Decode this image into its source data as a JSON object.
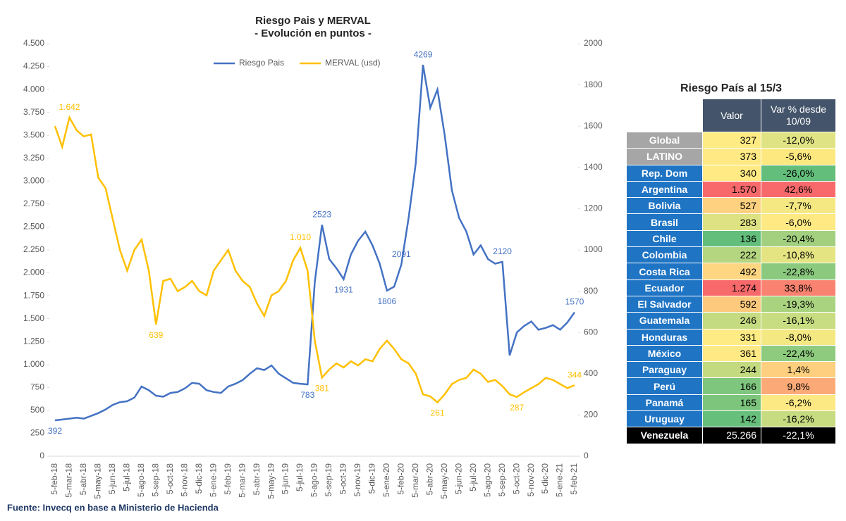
{
  "chart_data": {
    "type": "line",
    "title": "Riesgo Pais y MERVAL",
    "subtitle": "- Evolución en puntos -",
    "source": "Fuente: Invecq en base a Ministerio de Hacienda",
    "categories": [
      "5-feb-18",
      null,
      "5-mar-18",
      null,
      "5-abr-18",
      null,
      "5-may-18",
      null,
      "5-jun-18",
      null,
      "5-jul-18",
      null,
      "5-ago-18",
      null,
      "5-sep-18",
      null,
      "5-oct-18",
      null,
      "5-nov-18",
      null,
      "5-dic-18",
      null,
      "5-ene-19",
      null,
      "5-feb-19",
      null,
      "5-mar-19",
      null,
      "5-abr-19",
      null,
      "5-may-19",
      null,
      "5-jun-19",
      null,
      "5-jul-19",
      null,
      "5-ago-19",
      null,
      "5-sep-19",
      null,
      "5-oct-19",
      null,
      "5-nov-19",
      null,
      "5-dic-19",
      null,
      "5-ene-20",
      null,
      "5-feb-20",
      null,
      "5-mar-20",
      null,
      "5-abr-20",
      null,
      "5-may-20",
      null,
      "5-jun-20",
      null,
      "5-jul-20",
      null,
      "5-ago-20",
      null,
      "5-sep-20",
      null,
      "5-oct-20",
      null,
      "5-nov-20",
      null,
      "5-dic-20",
      null,
      "5-ene-21",
      null,
      "5-feb-21"
    ],
    "series": [
      {
        "name": "Riesgo Pais",
        "color": "#4472c4",
        "axis": "y",
        "values": [
          392,
          400,
          410,
          420,
          410,
          440,
          470,
          510,
          560,
          590,
          600,
          640,
          760,
          720,
          660,
          650,
          690,
          700,
          740,
          800,
          790,
          720,
          700,
          690,
          760,
          790,
          830,
          900,
          960,
          940,
          990,
          900,
          850,
          800,
          790,
          783,
          1900,
          2523,
          2150,
          2050,
          1931,
          2200,
          2350,
          2450,
          2300,
          2100,
          1806,
          1850,
          2091,
          2600,
          3200,
          4269,
          3800,
          4000,
          3500,
          2900,
          2600,
          2450,
          2200,
          2300,
          2150,
          2100,
          2120,
          1100,
          1350,
          1420,
          1470,
          1380,
          1400,
          1430,
          1380,
          1460,
          1570
        ],
        "value_labels": [
          "392",
          null,
          null,
          null,
          null,
          null,
          null,
          null,
          null,
          null,
          null,
          null,
          null,
          null,
          null,
          null,
          null,
          null,
          null,
          null,
          null,
          null,
          null,
          null,
          null,
          null,
          null,
          null,
          null,
          null,
          null,
          null,
          null,
          null,
          null,
          "783",
          null,
          "2523",
          null,
          null,
          "1931",
          null,
          null,
          null,
          null,
          null,
          "1806",
          null,
          "2091",
          null,
          null,
          "4269",
          null,
          null,
          null,
          null,
          null,
          null,
          null,
          null,
          null,
          null,
          "2120",
          null,
          null,
          null,
          null,
          null,
          null,
          null,
          null,
          null,
          "1570"
        ]
      },
      {
        "name": "MERVAL (usd)",
        "color": "#ffc000",
        "axis": "y2",
        "values": [
          1600,
          1500,
          1642,
          1580,
          1550,
          1560,
          1350,
          1300,
          1150,
          1000,
          900,
          1000,
          1050,
          900,
          639,
          850,
          860,
          800,
          820,
          850,
          800,
          780,
          900,
          950,
          1000,
          900,
          850,
          820,
          740,
          680,
          780,
          800,
          850,
          950,
          1010,
          900,
          560,
          381,
          420,
          450,
          430,
          460,
          440,
          470,
          460,
          520,
          560,
          520,
          470,
          450,
          400,
          300,
          290,
          261,
          300,
          350,
          370,
          380,
          420,
          400,
          360,
          370,
          340,
          300,
          287,
          310,
          330,
          350,
          380,
          370,
          350,
          330,
          344
        ],
        "value_labels": [
          null,
          null,
          "1.642",
          null,
          null,
          null,
          null,
          null,
          null,
          null,
          null,
          null,
          null,
          null,
          "639",
          null,
          null,
          null,
          null,
          null,
          null,
          null,
          null,
          null,
          null,
          null,
          null,
          null,
          null,
          null,
          null,
          null,
          null,
          null,
          "1.010",
          null,
          null,
          "381",
          null,
          null,
          null,
          null,
          null,
          null,
          null,
          null,
          null,
          null,
          null,
          null,
          null,
          null,
          null,
          "261",
          null,
          null,
          null,
          null,
          null,
          null,
          null,
          null,
          null,
          null,
          "287",
          null,
          null,
          null,
          null,
          null,
          null,
          null,
          "344"
        ]
      }
    ],
    "ylim": [
      0,
      4500
    ],
    "yticks": [
      0,
      250,
      500,
      750,
      {
        "value": 1000,
        "label": "1.000"
      },
      {
        "value": 1250,
        "label": "1.250"
      },
      {
        "value": 1500,
        "label": "1.500"
      },
      {
        "value": 1750,
        "label": "1.750"
      },
      {
        "value": 2000,
        "label": "2.000"
      },
      {
        "value": 2250,
        "label": "2.250"
      },
      {
        "value": 2500,
        "label": "2.500"
      },
      {
        "value": 2750,
        "label": "2.750"
      },
      {
        "value": 3000,
        "label": "3.000"
      },
      {
        "value": 3250,
        "label": "3.250"
      },
      {
        "value": 3500,
        "label": "3.500"
      },
      {
        "value": 3750,
        "label": "3.750"
      },
      {
        "value": 4000,
        "label": "4.000"
      },
      {
        "value": 4250,
        "label": "4.250"
      },
      {
        "value": 4500,
        "label": "4.500"
      }
    ],
    "y2lim": [
      0,
      2000
    ],
    "y2ticks": [
      0,
      200,
      400,
      600,
      800,
      1000,
      1200,
      1400,
      1600,
      1800,
      2000
    ],
    "legend": "top"
  },
  "table": {
    "title": "Riesgo País al 15/3",
    "header": [
      "Valor",
      "Var % desde 10/09"
    ],
    "header_color": "#44546a",
    "rows": [
      {
        "name": "Global",
        "value": "327",
        "var": "-12,0%",
        "name_color": "#a6a6a6",
        "value_color": "#ffeb84",
        "var_color": "#e0e383"
      },
      {
        "name": "LATINO",
        "value": "373",
        "var": "-5,6%",
        "name_color": "#a6a6a6",
        "value_color": "#ffe984",
        "var_color": "#fde880"
      },
      {
        "name": "Rep. Dom",
        "value": "340",
        "var": "-26,0%",
        "name_color": "#1f74c4",
        "value_color": "#ffea84",
        "var_color": "#63be7b"
      },
      {
        "name": "Argentina",
        "value": "1.570",
        "var": "42,6%",
        "name_color": "#1f74c4",
        "value_color": "#f8696b",
        "var_color": "#f8696b"
      },
      {
        "name": "Bolivia",
        "value": "527",
        "var": "-7,7%",
        "name_color": "#1f74c4",
        "value_color": "#fdd17f",
        "var_color": "#f5e883"
      },
      {
        "name": "Brasil",
        "value": "283",
        "var": "-6,0%",
        "name_color": "#1f74c4",
        "value_color": "#dfe282",
        "var_color": "#fee983"
      },
      {
        "name": "Chile",
        "value": "136",
        "var": "-20,4%",
        "name_color": "#1f74c4",
        "value_color": "#63be7b",
        "var_color": "#a2d07f"
      },
      {
        "name": "Colombia",
        "value": "222",
        "var": "-10,8%",
        "name_color": "#1f74c4",
        "value_color": "#b5d680",
        "var_color": "#e5e482"
      },
      {
        "name": "Costa Rica",
        "value": "492",
        "var": "-22,8%",
        "name_color": "#1f74c4",
        "value_color": "#fed580",
        "var_color": "#8ac97e"
      },
      {
        "name": "Ecuador",
        "value": "1.274",
        "var": "33,8%",
        "name_color": "#1f74c4",
        "value_color": "#f8696b",
        "var_color": "#f98370"
      },
      {
        "name": "El Salvador",
        "value": "592",
        "var": "-19,3%",
        "name_color": "#1f74c4",
        "value_color": "#fdc97d",
        "var_color": "#aad380"
      },
      {
        "name": "Guatemala",
        "value": "246",
        "var": "-16,1%",
        "name_color": "#1f74c4",
        "value_color": "#c5db81",
        "var_color": "#c8dc81"
      },
      {
        "name": "Honduras",
        "value": "331",
        "var": "-8,0%",
        "name_color": "#1f74c4",
        "value_color": "#ffeb84",
        "var_color": "#f4e883"
      },
      {
        "name": "México",
        "value": "361",
        "var": "-22,4%",
        "name_color": "#1f74c4",
        "value_color": "#ffe984",
        "var_color": "#8ecb7e"
      },
      {
        "name": "Paraguay",
        "value": "244",
        "var": "1,4%",
        "name_color": "#1f74c4",
        "value_color": "#c4da81",
        "var_color": "#fdcf7e"
      },
      {
        "name": "Perú",
        "value": "166",
        "var": "9,8%",
        "name_color": "#1f74c4",
        "value_color": "#7ec57d",
        "var_color": "#fbaa77"
      },
      {
        "name": "Panamá",
        "value": "165",
        "var": "-6,2%",
        "name_color": "#1f74c4",
        "value_color": "#7dc57d",
        "var_color": "#fde983"
      },
      {
        "name": "Uruguay",
        "value": "142",
        "var": "-16,2%",
        "name_color": "#1f74c4",
        "value_color": "#67bf7c",
        "var_color": "#c7db81"
      },
      {
        "name": "Venezuela",
        "value": "25.266",
        "var": "-22,1%",
        "name_color": "#000000",
        "value_color": "#000000",
        "var_color": "#000000"
      }
    ]
  }
}
